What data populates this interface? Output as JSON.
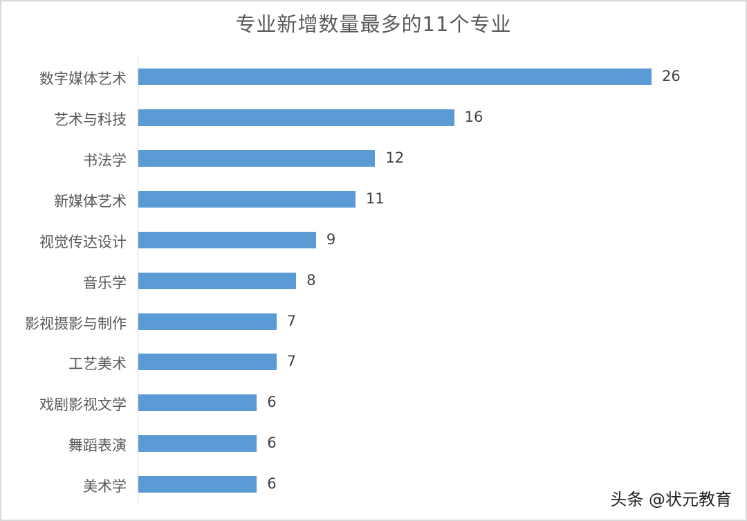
{
  "chart_data": {
    "type": "bar",
    "orientation": "horizontal",
    "title": "专业新增数量最多的11个专业",
    "xlabel": "",
    "ylabel": "",
    "categories": [
      "数字媒体艺术",
      "艺术与科技",
      "书法学",
      "新媒体艺术",
      "视觉传达设计",
      "音乐学",
      "影视摄影与制作",
      "工艺美术",
      "戏剧影视文学",
      "舞蹈表演",
      "美术学"
    ],
    "values": [
      26,
      16,
      12,
      11,
      9,
      8,
      7,
      7,
      6,
      6,
      6
    ],
    "data_labels": true,
    "grid": false,
    "legend": "none",
    "xlim": [
      0,
      26
    ],
    "bar_color": "#5b9bd5"
  },
  "labels": {
    "title": "专业新增数量最多的11个专业",
    "watermark": "头条 @状元教育",
    "rows": [
      {
        "name": "数字媒体艺术",
        "value": "26"
      },
      {
        "name": "艺术与科技",
        "value": "16"
      },
      {
        "name": "书法学",
        "value": "12"
      },
      {
        "name": "新媒体艺术",
        "value": "11"
      },
      {
        "name": "视觉传达设计",
        "value": "9"
      },
      {
        "name": "音乐学",
        "value": "8"
      },
      {
        "name": "影视摄影与制作",
        "value": "7"
      },
      {
        "name": "工艺美术",
        "value": "7"
      },
      {
        "name": "戏剧影视文学",
        "value": "6"
      },
      {
        "name": "舞蹈表演",
        "value": "6"
      },
      {
        "name": "美术学",
        "value": "6"
      }
    ]
  }
}
